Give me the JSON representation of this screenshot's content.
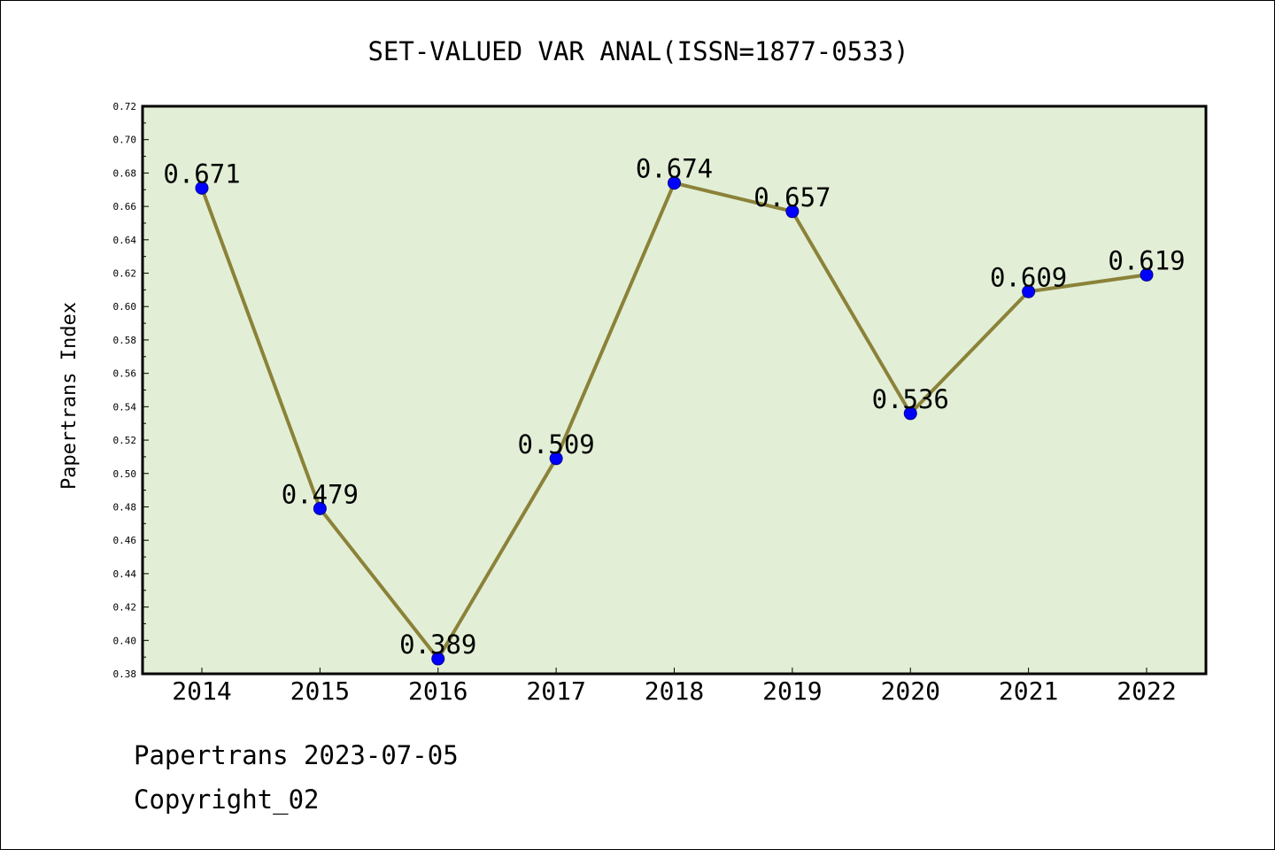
{
  "chart_data": {
    "type": "line",
    "title": "SET-VALUED VAR ANAL(ISSN=1877-0533)",
    "ylabel": "Papertrans Index",
    "xlabel": "",
    "categories": [
      "2014",
      "2015",
      "2016",
      "2017",
      "2018",
      "2019",
      "2020",
      "2021",
      "2022"
    ],
    "series": [
      {
        "values": [
          0.671,
          0.479,
          0.389,
          0.509,
          0.674,
          0.657,
          0.536,
          0.609,
          0.619
        ],
        "data_labels": [
          "0.671",
          "0.479",
          "0.389",
          "0.509",
          "0.674",
          "0.657",
          "0.536",
          "0.609",
          "0.619"
        ],
        "line_color": "#8b8239",
        "marker_color": "#0000ff"
      }
    ],
    "ylim": [
      0.38,
      0.72
    ],
    "yticks": [
      "0.38",
      "0.40",
      "0.42",
      "0.44",
      "0.46",
      "0.48",
      "0.50",
      "0.52",
      "0.54",
      "0.56",
      "0.58",
      "0.60",
      "0.62",
      "0.64",
      "0.66",
      "0.68",
      "0.70",
      "0.72"
    ],
    "plot_background": "#e2efd6",
    "grid": false,
    "legend": "none"
  },
  "footer": {
    "line1": "Papertrans 2023-07-05",
    "line2": "Copyright_02"
  }
}
